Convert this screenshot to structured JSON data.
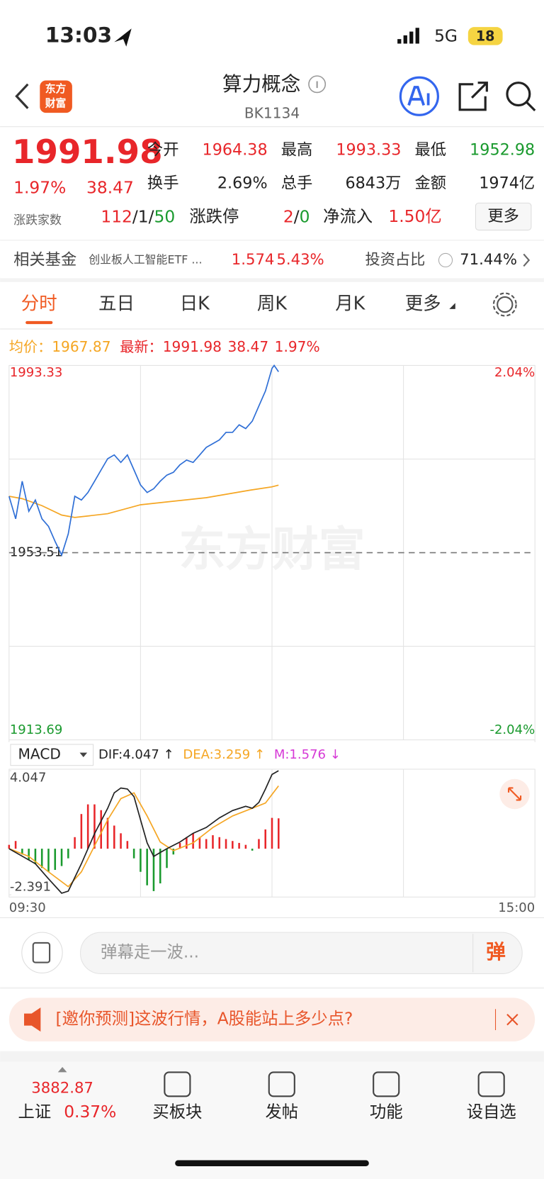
{
  "status": {
    "time": "13:03",
    "network": "5G",
    "battery": "18"
  },
  "header": {
    "logo": [
      "东方",
      "财富"
    ],
    "title": "算力概念",
    "code": "BK1134"
  },
  "quote": {
    "price": "1991.98",
    "change_pct": "1.97%",
    "change": "38.47",
    "stats": [
      {
        "label": "今开",
        "value": "1964.38"
      },
      {
        "label": "最高",
        "value": "1993.33"
      },
      {
        "label": "最低",
        "value": "1952.98"
      },
      {
        "label": "换手",
        "value": "2.69%"
      },
      {
        "label": "总手",
        "value": "6843万"
      },
      {
        "label": "金额",
        "value": "1974亿"
      }
    ],
    "breadth_label": "涨跌家数",
    "breadth": [
      "112",
      "/",
      "1",
      "/",
      "50"
    ],
    "limit_label": "涨跌停",
    "limit": [
      "2",
      "/",
      "0"
    ],
    "inflow_label": "净流入",
    "inflow": "1.50亿",
    "more": "更多"
  },
  "fund": {
    "label": "相关基金",
    "name": "创业板人工智能ETF ...",
    "price": "1.574",
    "pct": "5.43%",
    "ratio_label": "投资占比",
    "ratio": "71.44%"
  },
  "tabs": [
    "分时",
    "五日",
    "日K",
    "周K",
    "月K",
    "更多"
  ],
  "chart_data": [
    {
      "type": "line",
      "watermark": "东方财富",
      "legend": {
        "avg_label": "均价：",
        "avg": "1967.87",
        "last_label": "最新：",
        "last": "1991.98",
        "change": "38.47",
        "pct": "1.97%"
      },
      "xlim": [
        0,
        240
      ],
      "xticks": [
        {
          "value": 0,
          "label": "09:30"
        },
        {
          "value": 240,
          "label": "15:00"
        }
      ],
      "ylim": [
        1913.69,
        1993.33
      ],
      "yticks": [
        1913.69,
        1953.51,
        1993.33
      ],
      "y2lim": [
        -2.04,
        2.04
      ],
      "y2ticks": [
        {
          "value": -2.04,
          "label": "-2.04%"
        },
        {
          "value": 2.04,
          "label": "2.04%"
        }
      ],
      "series": [
        {
          "name": "最新",
          "color": "#2f6fd6",
          "x": [
            0,
            3,
            6,
            9,
            12,
            15,
            18,
            21,
            24,
            27,
            30,
            33,
            36,
            39,
            42,
            45,
            48,
            51,
            54,
            57,
            60,
            63,
            66,
            69,
            72,
            75,
            78,
            81,
            84,
            87,
            90,
            93,
            96,
            99,
            102,
            105,
            108,
            111,
            114,
            117,
            120,
            121,
            123
          ],
          "values": [
            1965.5,
            1960.7,
            1968.7,
            1962.3,
            1964.7,
            1960.7,
            1959.1,
            1955.9,
            1953.0,
            1957.5,
            1965.5,
            1964.7,
            1966.3,
            1968.7,
            1971.1,
            1973.5,
            1974.3,
            1972.7,
            1974.3,
            1971.1,
            1967.9,
            1966.3,
            1967.1,
            1968.7,
            1970.0,
            1970.6,
            1972.2,
            1973.2,
            1972.7,
            1974.3,
            1975.9,
            1976.7,
            1977.5,
            1979.1,
            1979.1,
            1980.7,
            1979.9,
            1981.5,
            1984.7,
            1987.9,
            1992.7,
            1993.33,
            1991.98
          ]
        },
        {
          "name": "均价",
          "color": "#f5a623",
          "x": [
            0,
            6,
            15,
            24,
            30,
            45,
            60,
            90,
            110,
            120,
            123
          ],
          "values": [
            1965.5,
            1965.0,
            1963.5,
            1961.5,
            1961.0,
            1961.8,
            1963.7,
            1965.2,
            1966.8,
            1967.5,
            1967.87
          ]
        }
      ]
    },
    {
      "type": "macd",
      "indicator": "MACD",
      "labels": [
        "DIF:4.047 ↑",
        "DEA:3.259 ↑",
        "M:1.576 ↓"
      ],
      "xlim": [
        0,
        240
      ],
      "ylim": [
        -2.391,
        4.047
      ],
      "yticks": [
        -2.391,
        4.047
      ],
      "up_color": "#e8262a",
      "down_color": "#1a9a2e",
      "series": [
        {
          "name": "DIF",
          "color": "#222222",
          "x": [
            0,
            6,
            12,
            18,
            24,
            27,
            33,
            39,
            45,
            48,
            51,
            54,
            57,
            60,
            63,
            66,
            69,
            72,
            78,
            84,
            90,
            96,
            102,
            108,
            111,
            114,
            117,
            120,
            123
          ],
          "values": [
            0,
            -0.39,
            -0.78,
            -1.56,
            -2.31,
            -2.2,
            -0.78,
            0.78,
            2.1,
            2.9,
            3.15,
            3.1,
            2.7,
            1.5,
            0.3,
            -0.4,
            -0.2,
            0,
            0.35,
            0.8,
            1.1,
            1.6,
            1.98,
            2.2,
            2.1,
            2.4,
            3.1,
            3.85,
            4.047
          ]
        },
        {
          "name": "DEA",
          "color": "#f5a623",
          "x": [
            0,
            9,
            18,
            27,
            33,
            39,
            45,
            51,
            57,
            63,
            69,
            75,
            84,
            93,
            102,
            111,
            117,
            123
          ],
          "values": [
            0,
            -0.4,
            -1.2,
            -1.97,
            -1.2,
            0.15,
            1.5,
            2.6,
            2.9,
            1.7,
            0.35,
            -0.1,
            0.3,
            1.1,
            1.7,
            2.1,
            2.37,
            3.259
          ]
        },
        {
          "name": "M",
          "color": "#d63ad6",
          "x": [
            0,
            3,
            6,
            9,
            12,
            15,
            18,
            21,
            24,
            27,
            30,
            33,
            36,
            39,
            42,
            45,
            48,
            51,
            54,
            57,
            60,
            63,
            66,
            69,
            72,
            75,
            78,
            81,
            84,
            87,
            90,
            93,
            96,
            99,
            102,
            105,
            108,
            111,
            114,
            117,
            120,
            123
          ],
          "values": [
            0.2,
            0.4,
            -0.3,
            -0.6,
            -0.8,
            -1.0,
            -1.2,
            -1.1,
            -0.9,
            -0.5,
            0.6,
            1.8,
            2.3,
            2.3,
            2.0,
            1.6,
            1.2,
            0.8,
            0.4,
            -0.5,
            -1.2,
            -1.9,
            -2.2,
            -1.8,
            -1.0,
            -0.3,
            0.3,
            0.6,
            0.8,
            0.6,
            0.5,
            0.7,
            0.6,
            0.5,
            0.4,
            0.3,
            0.2,
            -0.1,
            0.5,
            1.0,
            1.6,
            1.576
          ]
        }
      ]
    }
  ],
  "comment": {
    "placeholder": "弹幕走一波...",
    "button": "弹"
  },
  "banner": {
    "text": "[邀你预测]这波行情，A股能站上多少点?"
  },
  "nav": {
    "index_value": "3882.87",
    "index_name": "上证",
    "index_pct": "0.37%",
    "items": [
      "买板块",
      "发帖",
      "功能",
      "设自选"
    ]
  }
}
